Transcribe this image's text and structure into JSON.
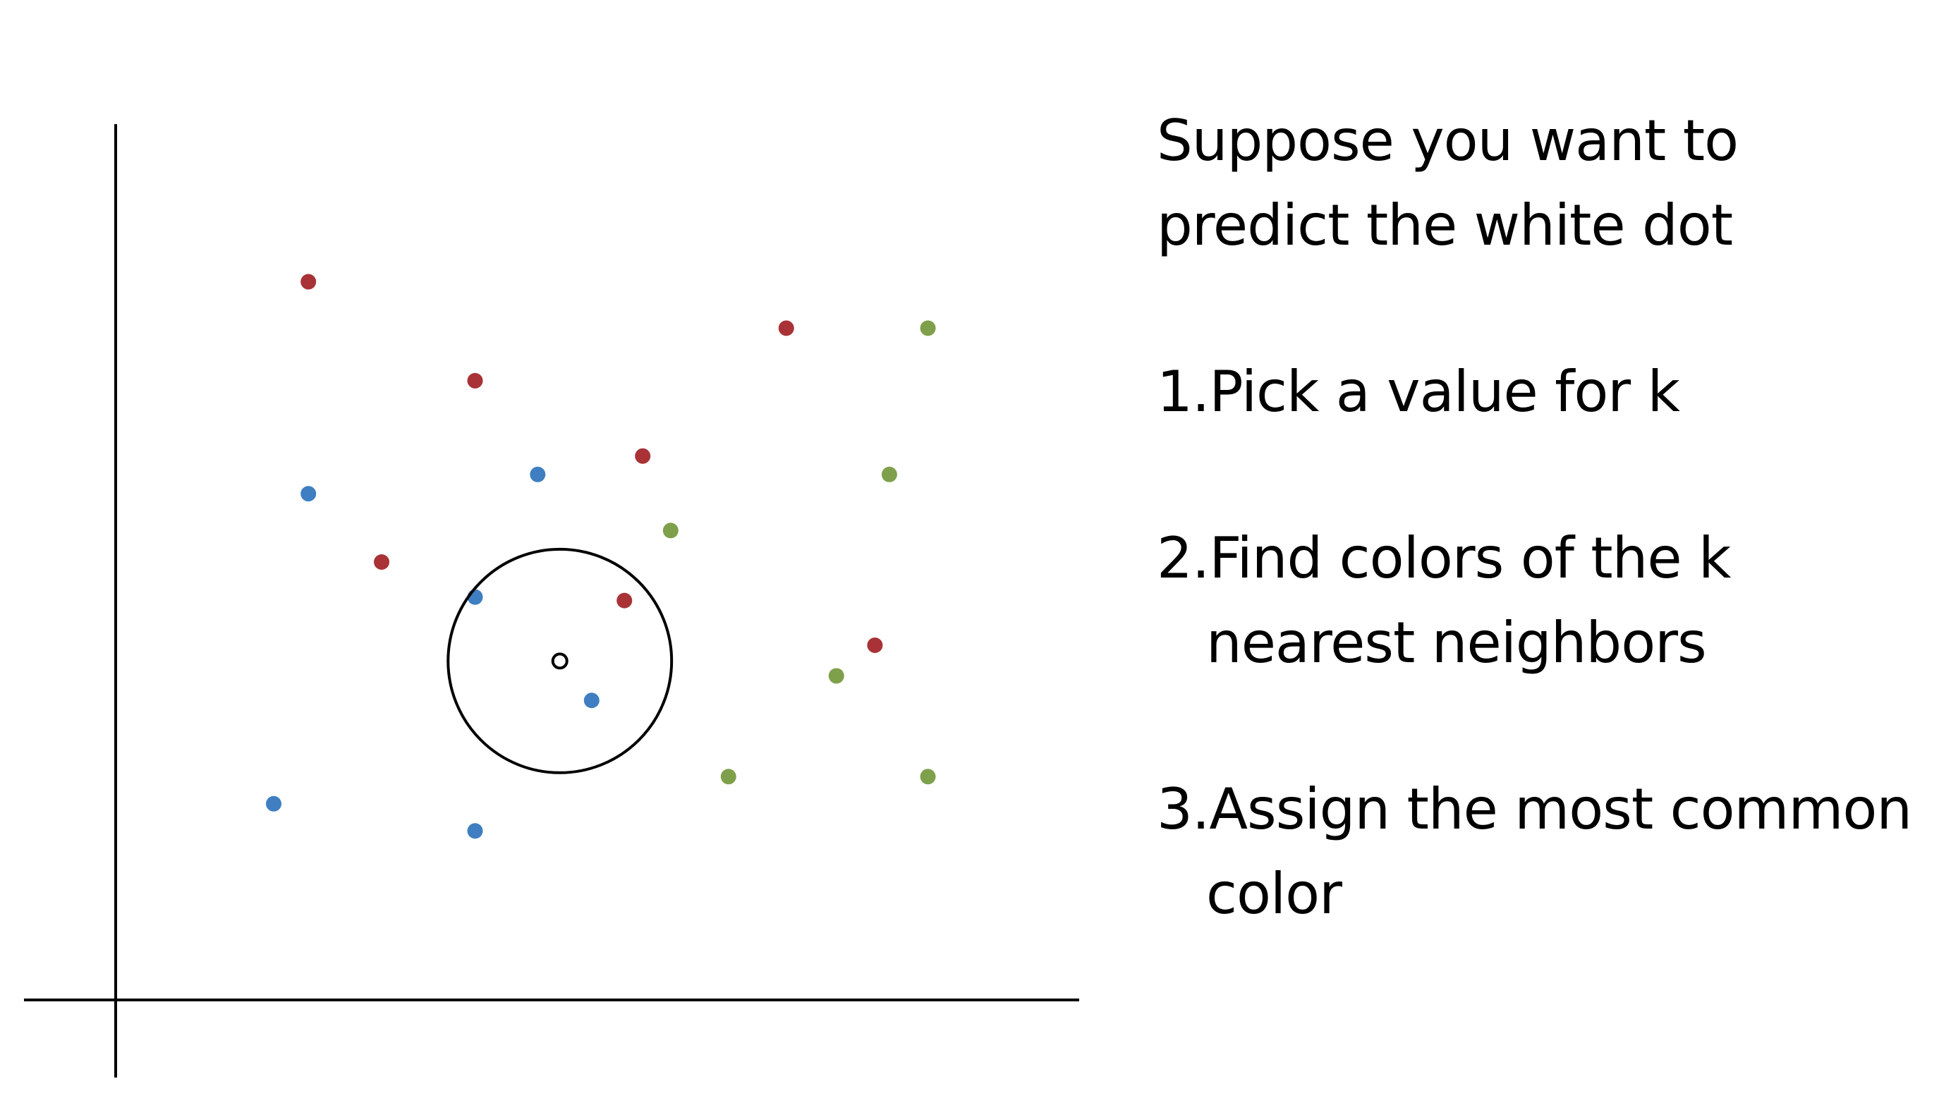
{
  "colors": {
    "red": "#a83236",
    "blue": "#3f7fc1",
    "green": "#7ea04a",
    "axis": "#000000",
    "query_fill": "#ffffff"
  },
  "chart_data": {
    "type": "scatter",
    "title": "",
    "xlabel": "",
    "ylabel": "",
    "grid": false,
    "legend": "none",
    "xlim": [
      0,
      100
    ],
    "ylim": [
      0,
      100
    ],
    "series": [
      {
        "color": "red",
        "points": [
          {
            "x": 20.0,
            "y": 82.0
          },
          {
            "x": 37.3,
            "y": 70.7
          },
          {
            "x": 54.7,
            "y": 62.1
          },
          {
            "x": 27.6,
            "y": 50.0
          },
          {
            "x": 52.8,
            "y": 45.6
          },
          {
            "x": 69.6,
            "y": 76.7
          },
          {
            "x": 78.8,
            "y": 40.5
          }
        ]
      },
      {
        "color": "blue",
        "points": [
          {
            "x": 20.0,
            "y": 57.8
          },
          {
            "x": 43.8,
            "y": 60.0
          },
          {
            "x": 37.3,
            "y": 46.0
          },
          {
            "x": 49.4,
            "y": 34.2
          },
          {
            "x": 16.4,
            "y": 22.4
          },
          {
            "x": 37.3,
            "y": 19.3
          }
        ]
      },
      {
        "color": "green",
        "points": [
          {
            "x": 84.3,
            "y": 76.7
          },
          {
            "x": 80.3,
            "y": 60.0
          },
          {
            "x": 57.6,
            "y": 53.6
          },
          {
            "x": 74.8,
            "y": 37.0
          },
          {
            "x": 63.6,
            "y": 25.5
          },
          {
            "x": 84.3,
            "y": 25.5
          }
        ]
      }
    ],
    "query_point": {
      "x": 46.1,
      "y": 38.7
    },
    "neighborhood_radius": 11.6
  },
  "text": {
    "intro_line1": "Suppose you want to",
    "intro_line2": "predict the white dot",
    "step1_line1": "1.Pick a value for k",
    "step2_line1": "2.Find colors of the k",
    "step2_line2": "nearest neighbors",
    "step3_line1": "3.Assign the most common",
    "step3_line2": "color"
  }
}
